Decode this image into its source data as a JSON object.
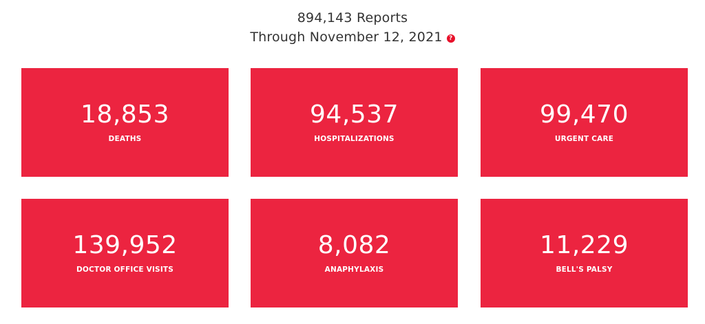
{
  "header": {
    "reports_line": "894,143 Reports",
    "through_line": "Through November 12, 2021",
    "help_icon": "question-circle-icon",
    "help_glyph": "?"
  },
  "accent_color": "#ec2440",
  "stats": [
    {
      "value": "18,853",
      "label": "DEATHS"
    },
    {
      "value": "94,537",
      "label": "HOSPITALIZATIONS"
    },
    {
      "value": "99,470",
      "label": "URGENT CARE"
    },
    {
      "value": "139,952",
      "label": "DOCTOR OFFICE VISITS"
    },
    {
      "value": "8,082",
      "label": "ANAPHYLAXIS"
    },
    {
      "value": "11,229",
      "label": "BELL'S PALSY"
    }
  ]
}
